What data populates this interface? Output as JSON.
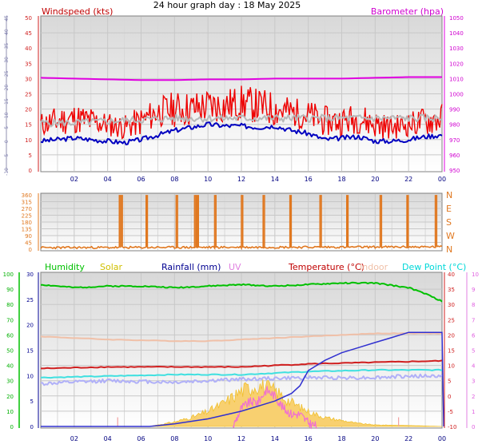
{
  "title": "24 hour graph day : 18 May 2025",
  "chart_data": [
    {
      "type": "line",
      "name": "wind-barometer",
      "left_axis": {
        "label": "Windspeed (kts)",
        "ticks": [
          "0",
          "5",
          "10",
          "15",
          "20",
          "25",
          "30",
          "35",
          "40",
          "45",
          "50"
        ]
      },
      "right_axis": {
        "label": "Barometer (hpa)",
        "ticks": [
          "950",
          "960",
          "970",
          "980",
          "990",
          "1000",
          "1010",
          "1020",
          "1030",
          "1040",
          "1050"
        ]
      },
      "far_left_ticks": [
        "-10",
        "-5",
        "0",
        "5",
        "10",
        "15",
        "20",
        "25",
        "30",
        "35",
        "40",
        "45"
      ],
      "xlabels": [
        "02",
        "04",
        "06",
        "08",
        "10",
        "12",
        "14",
        "16",
        "18",
        "20",
        "22",
        "00"
      ],
      "barometer": {
        "x": [
          0,
          2,
          4,
          6,
          8,
          10,
          12,
          14,
          16,
          18,
          20,
          22,
          24
        ],
        "y": [
          1010.5,
          1010,
          1009.5,
          1009,
          1009,
          1009.5,
          1009.5,
          1010,
          1010,
          1010,
          1010.5,
          1011,
          1011
        ]
      },
      "wind_avg": {
        "x": [
          0,
          1,
          2,
          3,
          4,
          5,
          6,
          7,
          8,
          9,
          10,
          11,
          12,
          13,
          14,
          15,
          16,
          17,
          18,
          19,
          20,
          21,
          22,
          23,
          24
        ],
        "y": [
          9.5,
          10,
          10.5,
          10,
          9.5,
          9,
          10,
          11.5,
          13,
          14,
          15,
          14.5,
          14.5,
          14,
          14.5,
          13,
          12,
          10,
          10.5,
          11,
          9.5,
          9.5,
          10,
          11,
          11.5
        ]
      },
      "wind_dir_overlay": {
        "x": [
          0,
          2,
          4,
          6,
          8,
          10,
          12,
          14,
          16,
          18,
          20,
          22,
          24
        ],
        "y": [
          15.5,
          15.5,
          16,
          16.5,
          17,
          17,
          17,
          17,
          17,
          17,
          17,
          17,
          17
        ]
      },
      "wind_gust": {
        "x": [
          0,
          1,
          2,
          3,
          4,
          5,
          6,
          7,
          8,
          9,
          10,
          11,
          12,
          13,
          14,
          15,
          16,
          17,
          18,
          19,
          20,
          21,
          22,
          23,
          24
        ],
        "y": [
          15,
          16,
          17,
          16,
          15,
          14,
          16,
          19,
          20,
          20,
          21,
          21,
          22,
          21,
          20,
          19,
          18,
          16,
          16,
          17,
          15,
          14,
          15,
          16,
          17
        ],
        "spread": [
          4,
          5,
          5,
          5,
          4,
          4,
          5,
          5,
          6,
          6,
          6,
          6,
          6,
          6,
          6,
          5,
          5,
          5,
          5,
          5,
          5,
          4,
          4,
          5,
          5
        ]
      },
      "colors": {
        "barometer": "#e000e0",
        "wind_avg": "#0000c0",
        "gust": "#ee0000",
        "overlay": "#b8b8b8"
      }
    },
    {
      "type": "line",
      "name": "wind-direction",
      "left_ticks": [
        "0",
        "45",
        "90",
        "135",
        "180",
        "225",
        "270",
        "315",
        "360"
      ],
      "right_letters": [
        "N",
        "W",
        "S",
        "E",
        "N"
      ],
      "direction": {
        "x": [
          0,
          24
        ],
        "y": [
          10,
          15
        ]
      },
      "spikes": [
        4.7,
        4.8,
        6.3,
        8.1,
        9.2,
        9.35,
        10.4,
        12.0,
        13.3,
        14.9,
        16.7,
        18.3,
        20.3,
        21.9,
        23.6
      ],
      "spike_width": 0.08,
      "colors": {
        "line": "#e07820"
      }
    },
    {
      "type": "line",
      "name": "temp-humidity-solar",
      "legend": [
        {
          "label": "Humidity",
          "color": "#00c000"
        },
        {
          "label": "Solar",
          "color": "#d0c000"
        },
        {
          "label": "Rainfall (mm)",
          "color": "#000090"
        },
        {
          "label": "UV",
          "color": "#e080e0"
        },
        {
          "label": "Temperature (°C)",
          "color": "#c00000"
        },
        {
          "label": "Indoor",
          "color": "#f0c0a8"
        },
        {
          "label": "Dew Point (°C)",
          "color": "#00d8d8"
        }
      ],
      "humidity_axis_ticks": [
        "0",
        "10",
        "20",
        "30",
        "40",
        "50",
        "60",
        "70",
        "80",
        "90",
        "100"
      ],
      "rain_axis_ticks": [
        "0",
        "5",
        "10",
        "15",
        "20",
        "25",
        "30"
      ],
      "temp_axis_ticks": [
        "-10",
        "-5",
        "0",
        "5",
        "10",
        "15",
        "20",
        "25",
        "30",
        "35",
        "40"
      ],
      "uv_axis_ticks": [
        "0",
        "1",
        "2",
        "3",
        "4",
        "5",
        "6",
        "7",
        "8",
        "9",
        "10"
      ],
      "xlabels": [
        "02",
        "04",
        "06",
        "08",
        "10",
        "12",
        "14",
        "16",
        "18",
        "20",
        "22",
        "00"
      ],
      "humidity": {
        "x": [
          0,
          2,
          4,
          6,
          8,
          10,
          12,
          14,
          16,
          18,
          20,
          22,
          23,
          24
        ],
        "y": [
          93,
          91,
          92,
          92,
          91,
          92,
          93,
          92,
          93,
          94,
          94,
          91,
          87,
          82
        ]
      },
      "indoor": {
        "x": [
          0,
          4,
          8,
          10,
          12,
          16,
          20,
          24
        ],
        "y": [
          19.5,
          18.5,
          18,
          18,
          18.5,
          19.5,
          20.5,
          20.5
        ]
      },
      "temperature": {
        "x": [
          0,
          4,
          8,
          10,
          12,
          16,
          20,
          24
        ],
        "y": [
          9,
          9.5,
          9.5,
          9.5,
          9.5,
          10.5,
          11,
          11.5
        ]
      },
      "dewpoint": {
        "x": [
          0,
          4,
          8,
          10,
          12,
          16,
          20,
          24
        ],
        "y": [
          6,
          6.5,
          7,
          7,
          7,
          8,
          8.5,
          8.5
        ]
      },
      "lavender": {
        "x": [
          0,
          4,
          8,
          10,
          12,
          16,
          20,
          22,
          24
        ],
        "y": [
          4,
          5,
          4.5,
          5,
          5.5,
          6,
          6,
          6.5,
          6.5
        ]
      },
      "rainfall": {
        "x": [
          0,
          6.5,
          8,
          10,
          12,
          14,
          15,
          15.5,
          16,
          17,
          18,
          19,
          20,
          21,
          22,
          23,
          24,
          24.1
        ],
        "y": [
          0,
          0,
          0.5,
          1.5,
          3,
          5,
          6.5,
          8,
          11,
          13,
          14.5,
          15.5,
          16.5,
          17.5,
          18.5,
          18.5,
          18.5,
          0
        ]
      },
      "solar": {
        "x": [
          0,
          6.5,
          7,
          8,
          9,
          10,
          11,
          12,
          13,
          14,
          15,
          16,
          17,
          18,
          19,
          20,
          22,
          24
        ],
        "y": [
          0,
          0,
          0.5,
          1.5,
          3,
          5,
          8,
          12,
          14,
          12,
          8,
          5,
          3,
          2,
          1,
          0.5,
          0.3,
          0
        ]
      },
      "uv": {
        "x": [
          11.5,
          12,
          12.5,
          13,
          13.5,
          14,
          14.5,
          15,
          15.5,
          16,
          16.5
        ],
        "y": [
          0,
          1.5,
          2,
          2,
          3,
          2.5,
          1.5,
          1,
          1,
          0.3,
          0
        ]
      },
      "solar_spikes": [
        4.6,
        21.4
      ],
      "colors": {
        "humidity": "#00c000",
        "indoor": "#f0c0a8",
        "temperature": "#d02020",
        "dewpoint": "#40e0e0",
        "lavender": "#b0b0f8",
        "rainfall": "#3030d0",
        "solar": "#f0c030",
        "uv": "#f070d0"
      }
    }
  ]
}
